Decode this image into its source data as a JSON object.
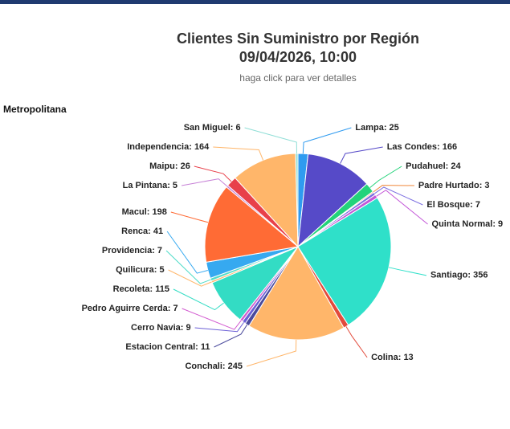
{
  "region": "Metropolitana",
  "chart_data": {
    "type": "pie",
    "title": "Clientes Sin Suministro por Región",
    "subtitle": "09/04/2026, 10:00",
    "caption": "haga click para ver detalles",
    "values": [
      25,
      166,
      24,
      3,
      7,
      9,
      356,
      13,
      245,
      11,
      9,
      7,
      115,
      5,
      7,
      41,
      198,
      5,
      26,
      164,
      6
    ],
    "value_labels": [
      "Lampa: 25",
      "Las Condes: 166",
      "Pudahuel: 24",
      "Padre Hurtado: 3",
      "El Bosque: 7",
      "Quinta Normal: 9",
      "Santiago: 356",
      "Colina: 13",
      "Conchali: 245",
      "Estacion Central: 11",
      "Cerro Navia: 9",
      "Pedro Aguirre Cerda: 7",
      "Recoleta: 115",
      "Quilicura: 5",
      "Providencia: 7",
      "Renca: 41",
      "Macul: 198",
      "La Pintana: 5",
      "Maipu: 26",
      "Independencia: 164",
      "San Miguel: 6"
    ],
    "colors": [
      "#2f9bf0",
      "#564ac8",
      "#23d37a",
      "#f0873a",
      "#7a6de0",
      "#c357d8",
      "#2fe0c9",
      "#e24b3c",
      "#ffb66a",
      "#4a4a9c",
      "#6b5fd6",
      "#d25ad0",
      "#33dcc4",
      "#ffb66a",
      "#4fdcc8",
      "#36a9f0",
      "#ff6b35",
      "#c680d6",
      "#e8404a",
      "#ffb66a",
      "#8fded6"
    ]
  }
}
